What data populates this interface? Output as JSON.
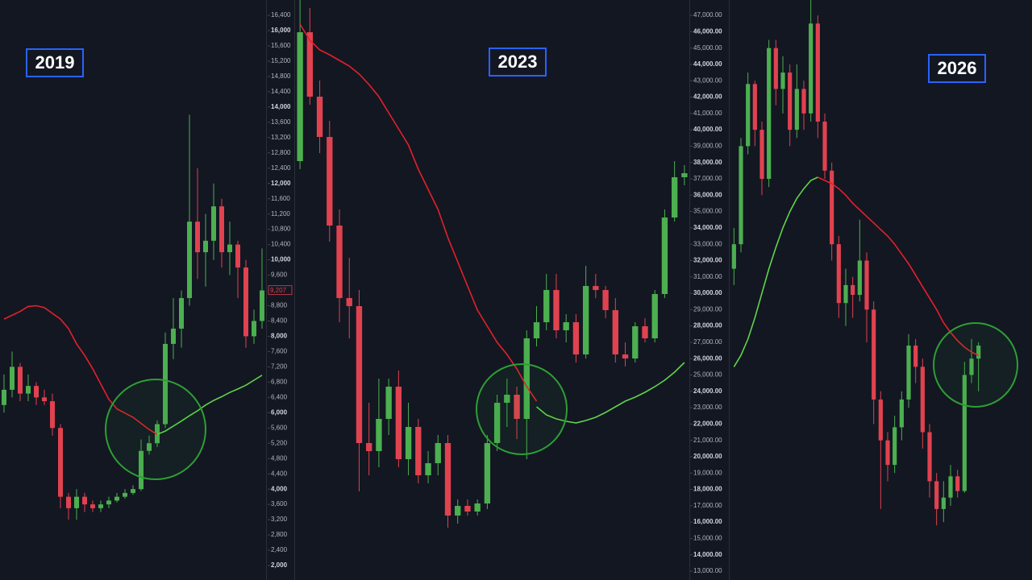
{
  "chart_data": [
    {
      "type": "candlestick",
      "annotation": "2019",
      "up_color": "#4caf50",
      "down_color": "#e0424f",
      "ylim": [
        1621,
        16801
      ],
      "yticks": [
        {
          "value": 2000,
          "label": "2,000"
        },
        {
          "value": 2400,
          "label": "2,400"
        },
        {
          "value": 2800,
          "label": "2,800"
        },
        {
          "value": 3200,
          "label": "3,200"
        },
        {
          "value": 3600,
          "label": "3,600"
        },
        {
          "value": 4000,
          "label": "4,000"
        },
        {
          "value": 4400,
          "label": "4,400"
        },
        {
          "value": 4800,
          "label": "4,800"
        },
        {
          "value": 5200,
          "label": "5,200"
        },
        {
          "value": 5600,
          "label": "5,600"
        },
        {
          "value": 6000,
          "label": "6,000"
        },
        {
          "value": 6400,
          "label": "6,400"
        },
        {
          "value": 6800,
          "label": "6,800"
        },
        {
          "value": 7200,
          "label": "7,200"
        },
        {
          "value": 7600,
          "label": "7,600"
        },
        {
          "value": 8000,
          "label": "8,000"
        },
        {
          "value": 8400,
          "label": "8,400"
        },
        {
          "value": 8800,
          "label": "8,800"
        },
        {
          "value": 9200,
          "label": "9,200"
        },
        {
          "value": 9600,
          "label": "9,600"
        },
        {
          "value": 10000,
          "label": "10,000"
        },
        {
          "value": 10400,
          "label": "10,400"
        },
        {
          "value": 10800,
          "label": "10,800"
        },
        {
          "value": 11200,
          "label": "11,200"
        },
        {
          "value": 11600,
          "label": "11,600"
        },
        {
          "value": 12000,
          "label": "12,000"
        },
        {
          "value": 12400,
          "label": "12,400"
        },
        {
          "value": 12800,
          "label": "12,800"
        },
        {
          "value": 13200,
          "label": "13,200"
        },
        {
          "value": 13600,
          "label": "13,600"
        },
        {
          "value": 14000,
          "label": "14,000"
        },
        {
          "value": 14400,
          "label": "14,400"
        },
        {
          "value": 14800,
          "label": "14,800"
        },
        {
          "value": 15200,
          "label": "15,200"
        },
        {
          "value": 15600,
          "label": "15,600"
        },
        {
          "value": 16000,
          "label": "16,000"
        },
        {
          "value": 16400,
          "label": "16,400"
        }
      ],
      "last_price": {
        "value": 9207,
        "label": "9,207"
      },
      "open": [
        6200,
        6600,
        7200,
        6500,
        6700,
        6400,
        6300,
        5600,
        3800,
        3500,
        3800,
        3600,
        3500,
        3600,
        3700,
        3800,
        3900,
        4000,
        5000,
        5200,
        5700,
        7800,
        8200,
        9000,
        11000,
        10200,
        10500,
        11400,
        10200,
        10400,
        9800,
        8000,
        8400
      ],
      "high": [
        7000,
        7600,
        7300,
        7000,
        6800,
        6600,
        6500,
        5700,
        3900,
        4000,
        3900,
        3700,
        3700,
        3800,
        3900,
        4000,
        4100,
        5300,
        5400,
        5800,
        8100,
        9000,
        9200,
        13800,
        12400,
        11200,
        12000,
        11600,
        11000,
        10500,
        10000,
        8700,
        10300
      ],
      "low": [
        6000,
        6400,
        6300,
        6300,
        6200,
        6200,
        5400,
        3500,
        3200,
        3200,
        3400,
        3400,
        3400,
        3500,
        3650,
        3750,
        3850,
        3950,
        4900,
        5100,
        5600,
        7400,
        7700,
        8800,
        9500,
        9300,
        10000,
        9800,
        9600,
        9000,
        7700,
        7800,
        8200
      ],
      "close": [
        6600,
        7200,
        6500,
        6700,
        6400,
        6300,
        5600,
        3800,
        3500,
        3800,
        3600,
        3500,
        3600,
        3700,
        3800,
        3900,
        4000,
        5000,
        5200,
        5700,
        7800,
        8200,
        9000,
        11000,
        10200,
        10500,
        11400,
        10200,
        10400,
        9800,
        8000,
        8400,
        9200
      ],
      "moving_averages": [
        {
          "color": "#e3212b",
          "values": [
            8450,
            8550,
            8650,
            8780,
            8800,
            8750,
            8600,
            8450,
            8200,
            7800,
            7500,
            7150,
            6750,
            6350,
            6100,
            5990,
            5880,
            5720,
            5560,
            5430,
            null,
            null,
            null,
            null,
            null,
            null,
            null,
            null,
            null,
            null,
            null,
            null,
            null
          ]
        },
        {
          "color": "#5fd44a",
          "values": [
            null,
            null,
            null,
            null,
            null,
            null,
            null,
            null,
            null,
            null,
            null,
            null,
            null,
            null,
            null,
            null,
            null,
            null,
            null,
            5430,
            5520,
            5650,
            5780,
            5920,
            6050,
            6200,
            6320,
            6420,
            6530,
            6620,
            6720,
            6850,
            6980
          ]
        }
      ]
    },
    {
      "type": "candlestick",
      "annotation": "2023",
      "up_color": "#4caf50",
      "down_color": "#e0424f",
      "ylim": [
        0,
        720
      ],
      "open": [
        520,
        680,
        600,
        550,
        440,
        350,
        340,
        170,
        160,
        200,
        240,
        150,
        190,
        130,
        145,
        170,
        80,
        92,
        85,
        95,
        170,
        220,
        230,
        200,
        300,
        320,
        360,
        310,
        320,
        280,
        365,
        360,
        335,
        280,
        275,
        315,
        300,
        355,
        450,
        500
      ],
      "high": [
        720,
        710,
        620,
        570,
        460,
        400,
        360,
        220,
        250,
        250,
        260,
        220,
        200,
        160,
        180,
        180,
        100,
        100,
        100,
        180,
        230,
        250,
        240,
        310,
        340,
        380,
        380,
        330,
        330,
        390,
        380,
        365,
        350,
        295,
        320,
        325,
        360,
        460,
        520,
        515
      ],
      "low": [
        510,
        590,
        530,
        420,
        320,
        300,
        110,
        130,
        140,
        180,
        140,
        130,
        120,
        120,
        130,
        65,
        70,
        80,
        80,
        88,
        160,
        190,
        175,
        150,
        290,
        310,
        300,
        295,
        270,
        275,
        350,
        325,
        270,
        265,
        270,
        295,
        295,
        350,
        445,
        490
      ],
      "close": [
        680,
        600,
        550,
        440,
        350,
        340,
        170,
        160,
        200,
        240,
        150,
        190,
        130,
        145,
        170,
        80,
        92,
        85,
        95,
        170,
        220,
        230,
        200,
        300,
        320,
        360,
        310,
        320,
        280,
        365,
        360,
        335,
        280,
        275,
        315,
        300,
        355,
        450,
        500,
        505
      ],
      "moving_averages": [
        {
          "color": "#e3212b",
          "values": [
            690,
            670,
            658,
            652,
            645,
            638,
            628,
            615,
            600,
            580,
            560,
            540,
            510,
            485,
            460,
            425,
            395,
            365,
            335,
            315,
            295,
            280,
            262,
            240,
            222,
            null,
            null,
            null,
            null,
            null,
            null,
            null,
            null,
            null,
            null,
            null,
            null,
            null,
            null,
            null
          ]
        },
        {
          "color": "#5fd44a",
          "values": [
            null,
            null,
            null,
            null,
            null,
            null,
            null,
            null,
            null,
            null,
            null,
            null,
            null,
            null,
            null,
            null,
            null,
            null,
            null,
            null,
            null,
            null,
            null,
            null,
            215,
            205,
            200,
            197,
            195,
            198,
            202,
            208,
            215,
            222,
            227,
            233,
            240,
            248,
            258,
            270
          ]
        }
      ]
    },
    {
      "type": "candlestick",
      "annotation": "2026",
      "up_color": "#4caf50",
      "down_color": "#e0424f",
      "ylim": [
        12458,
        47940
      ],
      "yticks": [
        {
          "value": 13000,
          "label": "13,000.00"
        },
        {
          "value": 14000,
          "label": "14,000.00"
        },
        {
          "value": 15000,
          "label": "15,000.00"
        },
        {
          "value": 16000,
          "label": "16,000.00"
        },
        {
          "value": 17000,
          "label": "17,000.00"
        },
        {
          "value": 18000,
          "label": "18,000.00"
        },
        {
          "value": 19000,
          "label": "19,000.00"
        },
        {
          "value": 20000,
          "label": "20,000.00"
        },
        {
          "value": 21000,
          "label": "21,000.00"
        },
        {
          "value": 22000,
          "label": "22,000.00"
        },
        {
          "value": 23000,
          "label": "23,000.00"
        },
        {
          "value": 24000,
          "label": "24,000.00"
        },
        {
          "value": 25000,
          "label": "25,000.00"
        },
        {
          "value": 26000,
          "label": "26,000.00"
        },
        {
          "value": 27000,
          "label": "27,000.00"
        },
        {
          "value": 28000,
          "label": "28,000.00"
        },
        {
          "value": 29000,
          "label": "29,000.00"
        },
        {
          "value": 30000,
          "label": "30,000.00"
        },
        {
          "value": 31000,
          "label": "31,000.00"
        },
        {
          "value": 32000,
          "label": "32,000.00"
        },
        {
          "value": 33000,
          "label": "33,000.00"
        },
        {
          "value": 34000,
          "label": "34,000.00"
        },
        {
          "value": 35000,
          "label": "35,000.00"
        },
        {
          "value": 36000,
          "label": "36,000.00"
        },
        {
          "value": 37000,
          "label": "37,000.00"
        },
        {
          "value": 38000,
          "label": "38,000.00"
        },
        {
          "value": 39000,
          "label": "39,000.00"
        },
        {
          "value": 40000,
          "label": "40,000.00"
        },
        {
          "value": 41000,
          "label": "41,000.00"
        },
        {
          "value": 42000,
          "label": "42,000.00"
        },
        {
          "value": 43000,
          "label": "43,000.00"
        },
        {
          "value": 44000,
          "label": "44,000.00"
        },
        {
          "value": 45000,
          "label": "45,000.00"
        },
        {
          "value": 46000,
          "label": "46,000.00"
        },
        {
          "value": 47000,
          "label": "47,000.00"
        }
      ],
      "open": [
        31500,
        33000,
        39000,
        42800,
        40000,
        37000,
        45000,
        42500,
        43500,
        40000,
        42500,
        41000,
        46500,
        40500,
        37500,
        33000,
        29400,
        30500,
        29900,
        32000,
        29000,
        23500,
        21000,
        19500,
        21800,
        23500,
        26800,
        25500,
        21500,
        18500,
        16800,
        17500,
        18800,
        17900,
        25000,
        26000
      ],
      "high": [
        34000,
        39500,
        43500,
        43000,
        40500,
        45500,
        45500,
        44500,
        44000,
        44000,
        43000,
        48000,
        47000,
        41000,
        38000,
        33500,
        31500,
        31000,
        34500,
        32500,
        29500,
        24000,
        21500,
        22500,
        24000,
        27500,
        27200,
        26000,
        22000,
        19000,
        18500,
        19500,
        19200,
        25800,
        27200,
        27000
      ],
      "low": [
        30500,
        32500,
        38500,
        39000,
        36000,
        36500,
        41500,
        41000,
        39000,
        39500,
        40000,
        40500,
        39500,
        37000,
        32000,
        28500,
        28000,
        28500,
        29500,
        27000,
        22000,
        16800,
        18500,
        19000,
        21000,
        23000,
        24500,
        20500,
        17500,
        15800,
        16000,
        17000,
        17500,
        17800,
        24500,
        24000
      ],
      "close": [
        33000,
        39000,
        42800,
        40000,
        37000,
        45000,
        42500,
        43500,
        40000,
        42500,
        41000,
        46500,
        40500,
        37500,
        33000,
        29400,
        30500,
        29900,
        32000,
        29000,
        23500,
        21000,
        19500,
        21800,
        23500,
        26800,
        25500,
        21500,
        18500,
        16800,
        17500,
        18800,
        17900,
        25000,
        26000,
        26800
      ],
      "moving_averages": [
        {
          "color": "#e3212b",
          "values": [
            null,
            null,
            null,
            null,
            null,
            null,
            null,
            null,
            null,
            null,
            null,
            null,
            37100,
            36900,
            36700,
            36400,
            36000,
            35500,
            35100,
            34700,
            34300,
            33900,
            33500,
            33000,
            32400,
            31800,
            31100,
            30400,
            29700,
            29000,
            28200,
            27600,
            27100,
            26700,
            26400,
            26200
          ]
        },
        {
          "color": "#5fd44a",
          "values": [
            25500,
            26200,
            27200,
            28500,
            30000,
            31500,
            32800,
            34000,
            35000,
            35800,
            36400,
            36900,
            37100,
            null,
            null,
            null,
            null,
            null,
            null,
            null,
            null,
            null,
            null,
            null,
            null,
            null,
            null,
            null,
            null,
            null,
            null,
            null,
            null,
            null,
            null,
            null
          ]
        }
      ]
    }
  ]
}
